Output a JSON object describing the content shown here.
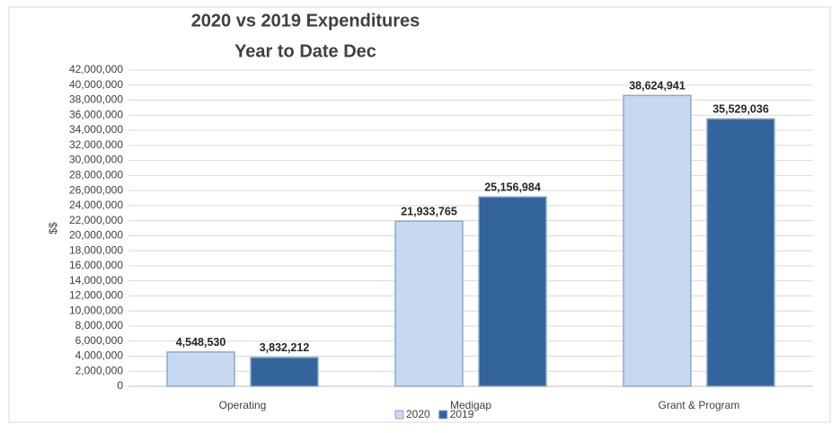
{
  "chart_data": {
    "type": "bar",
    "title": [
      "2020 vs 2019 Expenditures",
      "Year to Date Dec"
    ],
    "y_label": "$$",
    "categories": [
      "Operating",
      "Medigap",
      "Grant & Program"
    ],
    "series": [
      {
        "name": "2020",
        "color": "#c6d9f0",
        "values": [
          4548530,
          21933765,
          38624941
        ],
        "value_labels": [
          "4,548,530",
          "21,933,765",
          "38,624,941"
        ]
      },
      {
        "name": "2019",
        "color": "#34649c",
        "values": [
          3832212,
          25156984,
          35529036
        ],
        "value_labels": [
          "3,832,212",
          "25,156,984",
          "35,529,036"
        ]
      }
    ],
    "ylim": [
      0,
      42000000
    ],
    "yticks": [
      0,
      {
        "value": 2000000,
        "label": "2,000,000"
      },
      {
        "value": 4000000,
        "label": "4,000,000"
      },
      {
        "value": 6000000,
        "label": "6,000,000"
      },
      {
        "value": 8000000,
        "label": "8,000,000"
      },
      {
        "value": 10000000,
        "label": "10,000,000"
      },
      {
        "value": 12000000,
        "label": "12,000,000"
      },
      {
        "value": 14000000,
        "label": "14,000,000"
      },
      {
        "value": 16000000,
        "label": "16,000,000"
      },
      {
        "value": 18000000,
        "label": "18,000,000"
      },
      {
        "value": 20000000,
        "label": "20,000,000"
      },
      {
        "value": 22000000,
        "label": "22,000,000"
      },
      {
        "value": 24000000,
        "label": "24,000,000"
      },
      {
        "value": 26000000,
        "label": "26,000,000"
      },
      {
        "value": 28000000,
        "label": "28,000,000"
      },
      {
        "value": 30000000,
        "label": "30,000,000"
      },
      {
        "value": 32000000,
        "label": "32,000,000"
      },
      {
        "value": 34000000,
        "label": "34,000,000"
      },
      {
        "value": 36000000,
        "label": "36,000,000"
      },
      {
        "value": 38000000,
        "label": "38,000,000"
      },
      {
        "value": 40000000,
        "label": "40,000,000"
      },
      {
        "value": 42000000,
        "label": "42,000,000"
      }
    ],
    "grid": true,
    "legend": "bottom"
  }
}
